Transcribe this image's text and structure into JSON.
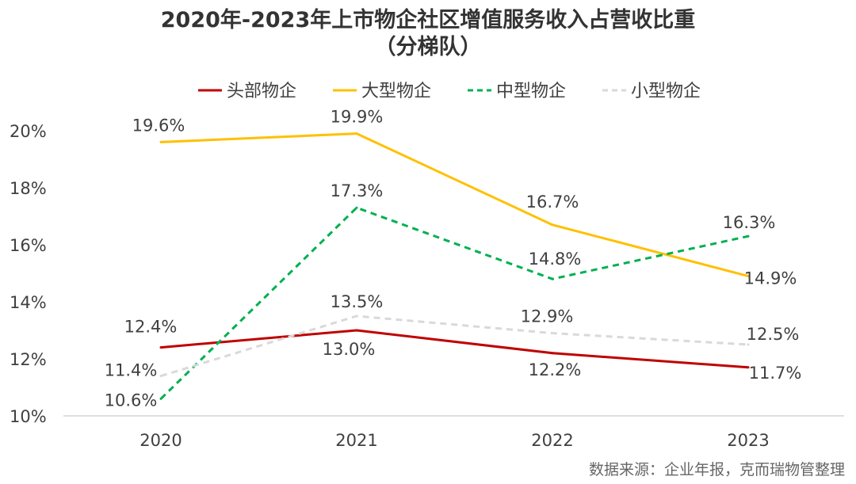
{
  "chart_data": {
    "type": "line",
    "title": "2020年-2023年上市物企社区增值服务收入占营收比重",
    "subtitle": "（分梯队）",
    "categories": [
      "2020",
      "2021",
      "2022",
      "2023"
    ],
    "ylim": [
      10,
      20
    ],
    "yticks": [
      "10%",
      "12%",
      "14%",
      "16%",
      "18%",
      "20%"
    ],
    "ytick_values": [
      10,
      12,
      14,
      16,
      18,
      20
    ],
    "legend_position": "top",
    "series": [
      {
        "name": "头部物企",
        "values": [
          12.4,
          13.0,
          12.2,
          11.7
        ],
        "labels": [
          "12.4%",
          "13.0%",
          "12.2%",
          "11.7%"
        ],
        "color": "#c00000",
        "dash": false
      },
      {
        "name": "大型物企",
        "values": [
          19.6,
          19.9,
          16.7,
          14.9
        ],
        "labels": [
          "19.6%",
          "19.9%",
          "16.7%",
          "14.9%"
        ],
        "color": "#ffc000",
        "dash": false
      },
      {
        "name": "中型物企",
        "values": [
          10.6,
          17.3,
          14.8,
          16.3
        ],
        "labels": [
          "10.6%",
          "17.3%",
          "14.8%",
          "16.3%"
        ],
        "color": "#00b050",
        "dash": true
      },
      {
        "name": "小型物企",
        "values": [
          11.4,
          13.5,
          12.9,
          12.5
        ],
        "labels": [
          "11.4%",
          "13.5%",
          "12.9%",
          "12.5%"
        ],
        "color": "#d9d9d9",
        "dash": true
      }
    ],
    "watermark": "克而瑞物管",
    "source": "数据来源：企业年报，克而瑞物管整理"
  }
}
